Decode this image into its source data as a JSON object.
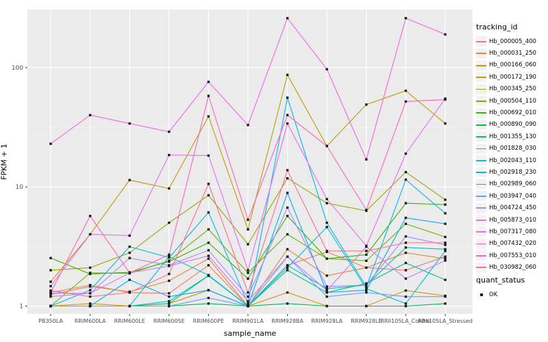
{
  "figure": {
    "x_axis_title": "sample_name",
    "y_axis_title": "FPKM + 1",
    "legend": {
      "tracking_title": "tracking_id",
      "quant_title": "quant_status",
      "quant_items": [
        {
          "label": "OK",
          "marker": "black-square"
        }
      ]
    },
    "colors": {
      "panel_bg": "#EBEBEB",
      "grid_major": "#FFFFFF",
      "grid_minor": "#FFFFFF",
      "tick_text": "#4D4D4D",
      "tick_mark": "#333333",
      "marker": "#1A1A1A",
      "legend_key_bg": "#F2F2F2"
    }
  },
  "chart_data": {
    "type": "line",
    "title": "",
    "xlabel": "sample_name",
    "ylabel": "FPKM + 1",
    "y_scale": "log10",
    "y_ticks": [
      1,
      10,
      100
    ],
    "y_tick_labels": [
      "1",
      "10",
      "100"
    ],
    "y_minor_breaks_exp": [
      0.5,
      1.5,
      2.5
    ],
    "ylim": [
      0.85,
      320
    ],
    "grid": true,
    "legend_position": "right",
    "point_marker": "small black square (quant_status = OK)",
    "categories": [
      "PB350LA",
      "RRIM600LA",
      "RRIM600LE",
      "RRIM600SE",
      "RRIM600PE",
      "RRIM901LA",
      "RRIM928BA",
      "RRIM928LA",
      "RRIM928LE",
      "RRII105LA_Control",
      "RRII105LA_Stressed"
    ],
    "series": [
      {
        "name": "Hb_000005_400",
        "color": "#F8766D",
        "values": [
          1.3,
          1.5,
          1.3,
          1.28,
          2.2,
          1.0,
          2.2,
          2.85,
          2.1,
          2.0,
          2.6
        ]
      },
      {
        "name": "Hb_000031_250",
        "color": "#E9842C",
        "values": [
          1.25,
          1.46,
          1.32,
          1.63,
          2.5,
          1.0,
          3.0,
          1.8,
          2.1,
          2.8,
          2.5
        ]
      },
      {
        "name": "Hb_000166_060",
        "color": "#D69100",
        "values": [
          1.0,
          1.05,
          1.0,
          1.05,
          1.36,
          1.0,
          1.3,
          1.0,
          1.0,
          1.35,
          1.22
        ]
      },
      {
        "name": "Hb_000172_190",
        "color": "#BC9D00",
        "values": [
          1.6,
          4.0,
          11.4,
          9.7,
          39.0,
          4.4,
          87.0,
          22.0,
          49.0,
          64.0,
          34.0
        ]
      },
      {
        "name": "Hb_000345_250",
        "color": "#9CA700",
        "values": [
          2.0,
          2.1,
          2.8,
          5.0,
          8.5,
          3.3,
          11.8,
          7.3,
          6.3,
          13.3,
          7.8
        ]
      },
      {
        "name": "Hb_000504_110",
        "color": "#6FB000",
        "values": [
          1.0,
          1.9,
          1.88,
          2.4,
          4.4,
          1.9,
          4.0,
          2.5,
          2.4,
          4.9,
          3.8
        ]
      },
      {
        "name": "Hb_000692_010",
        "color": "#2FB600",
        "values": [
          2.53,
          1.86,
          1.92,
          2.36,
          3.4,
          1.7,
          5.7,
          2.5,
          2.7,
          7.3,
          7.1
        ]
      },
      {
        "name": "Hb_000890_090",
        "color": "#00BB4B",
        "values": [
          1.0,
          1.0,
          1.0,
          1.0,
          1.05,
          1.0,
          1.05,
          1.0,
          1.0,
          1.0,
          1.05
        ]
      },
      {
        "name": "Hb_001355_130",
        "color": "#00C085",
        "values": [
          1.0,
          1.0,
          1.0,
          1.05,
          1.8,
          1.0,
          2.0,
          1.3,
          1.55,
          2.3,
          1.66
        ]
      },
      {
        "name": "Hb_001828_030",
        "color": "#00C0B3",
        "values": [
          1.0,
          1.0,
          1.0,
          1.1,
          1.8,
          1.0,
          2.2,
          1.4,
          1.5,
          3.1,
          3.0
        ]
      },
      {
        "name": "Hb_002043_110",
        "color": "#00BDD4",
        "values": [
          1.0,
          1.0,
          1.0,
          2.6,
          1.82,
          1.0,
          2.1,
          4.6,
          1.4,
          1.05,
          2.9
        ]
      },
      {
        "name": "Hb_002918_230",
        "color": "#00B7E8",
        "values": [
          1.0,
          1.36,
          3.15,
          2.55,
          6.1,
          1.05,
          56.0,
          5.0,
          1.45,
          11.5,
          6.0
        ]
      },
      {
        "name": "Hb_002989_060",
        "color": "#00ABFD",
        "values": [
          1.0,
          1.0,
          1.66,
          1.2,
          1.36,
          1.0,
          8.9,
          1.3,
          1.36,
          5.5,
          4.9
        ]
      },
      {
        "name": "Hb_003947_040",
        "color": "#6A9CFF",
        "values": [
          1.0,
          1.0,
          1.0,
          1.0,
          1.17,
          1.0,
          2.6,
          1.2,
          1.3,
          1.2,
          1.2
        ]
      },
      {
        "name": "Hb_004724_450",
        "color": "#A58AFF",
        "values": [
          1.28,
          1.28,
          2.53,
          2.2,
          2.94,
          1.2,
          6.7,
          1.46,
          1.5,
          3.84,
          3.26
        ]
      },
      {
        "name": "Hb_005873_010",
        "color": "#CF78FF",
        "values": [
          1.2,
          1.28,
          1.9,
          2.17,
          2.64,
          1.1,
          2.6,
          1.35,
          3.15,
          1.7,
          2.41
        ]
      },
      {
        "name": "Hb_007317_080",
        "color": "#E76BF3",
        "values": [
          1.47,
          4.0,
          3.9,
          18.5,
          18.3,
          2.0,
          34.0,
          7.9,
          3.2,
          19.0,
          55.0
        ]
      },
      {
        "name": "Hb_007432_020",
        "color": "#F763DF",
        "values": [
          23.0,
          40.0,
          34.0,
          29.0,
          76.0,
          33.0,
          260.0,
          97.0,
          17.0,
          260.0,
          190.0
        ]
      },
      {
        "name": "Hb_007553_010",
        "color": "#FF62BC",
        "values": [
          1.3,
          5.7,
          1.9,
          2.7,
          58.0,
          5.3,
          40.0,
          22.0,
          6.4,
          52.0,
          54.0
        ]
      },
      {
        "name": "Hb_030982_060",
        "color": "#FF6C91",
        "values": [
          1.35,
          1.2,
          1.3,
          1.86,
          10.6,
          1.3,
          13.8,
          2.9,
          2.9,
          3.4,
          3.4
        ]
      }
    ]
  }
}
